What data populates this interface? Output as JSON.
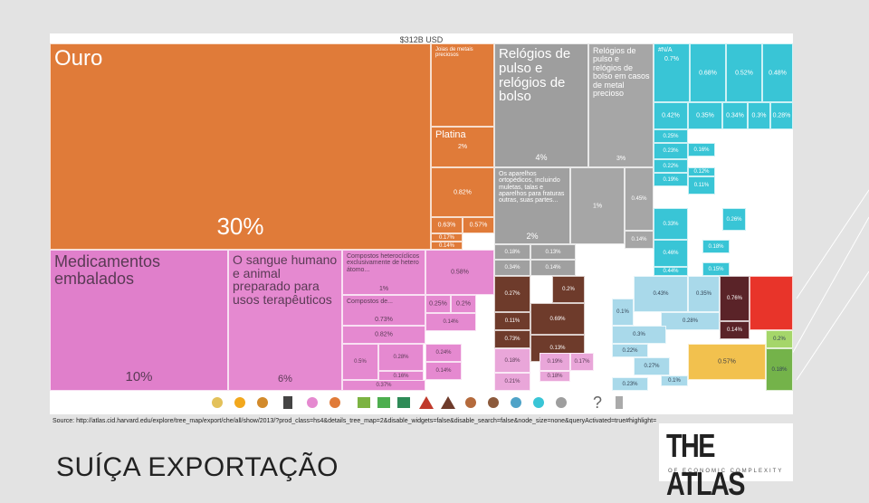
{
  "slide": {
    "title": "SUÍÇA EXPORTAÇÃO",
    "source": "Source: http://atlas.cid.harvard.edu/explore/tree_map/export/che/all/show/2013/?prod_class=hs4&details_tree_map=2&disable_widgets=false&disable_search=false&node_size=none&queryActivated=true#highlight=",
    "logo": {
      "title": "THE ATLAS",
      "subtitle": "OF ECONOMIC COMPLEXITY"
    }
  },
  "chart_data": {
    "type": "treemap",
    "title": "$312B USD",
    "tiles": [
      {
        "name": "Ouro",
        "value": 30,
        "value_label": "30%",
        "color": "#E07B39"
      },
      {
        "name": "Joias de metais preciosos",
        "color": "#E07B39"
      },
      {
        "name": "Platina",
        "value": 2,
        "value_label": "2%",
        "color": "#E07B39"
      },
      {
        "value": 0.82,
        "value_label": "0.82%",
        "color": "#E07B39"
      },
      {
        "value": 0.63,
        "value_label": "0.63%",
        "color": "#E07B39"
      },
      {
        "value": 0.57,
        "value_label": "0.57%",
        "color": "#E07B39"
      },
      {
        "value": 0.17,
        "value_label": "0.17%",
        "color": "#E07B39"
      },
      {
        "value": 0.14,
        "value_label": "0.14%",
        "color": "#E07B39"
      },
      {
        "name": "Relógios de pulso e relógios de bolso",
        "value": 4,
        "value_label": "4%",
        "color": "#9E9E9E"
      },
      {
        "name": "Relógios de pulso e relógios de bolso em casos de metal precioso",
        "value": 3,
        "value_label": "3%",
        "color": "#A6A6A6"
      },
      {
        "name": "Os aparelhos ortopédicos, incluindo muletas, talas e aparelhos para fraturas outras, suas partes...",
        "value": 2,
        "value_label": "2%",
        "color": "#A0A0A0"
      },
      {
        "value": 1,
        "value_label": "1%",
        "color": "#A6A6A6"
      },
      {
        "value": 0.45,
        "value_label": "0.45%",
        "color": "#A6A6A6"
      },
      {
        "value": 0.14,
        "value_label": "0.14%",
        "color": "#A6A6A6"
      },
      {
        "value": 0.18,
        "value_label": "0.18%",
        "color": "#A0A0A0"
      },
      {
        "value": 0.13,
        "value_label": "0.13%",
        "color": "#A0A0A0"
      },
      {
        "value": 0.34,
        "value_label": "0.34%",
        "color": "#A0A0A0"
      },
      {
        "value": 0.14,
        "value_label": "0.14%",
        "color": "#A0A0A0"
      },
      {
        "name": "#N/A",
        "value": 0.7,
        "value_label": "0.7%",
        "color": "#39C5D6"
      },
      {
        "value": 0.68,
        "value_label": "0.68%",
        "color": "#39C5D6"
      },
      {
        "value": 0.52,
        "value_label": "0.52%",
        "color": "#39C5D6"
      },
      {
        "value": 0.48,
        "value_label": "0.48%",
        "color": "#39C5D6"
      },
      {
        "value": 0.42,
        "value_label": "0.42%",
        "color": "#39C5D6"
      },
      {
        "value": 0.35,
        "value_label": "0.35%",
        "color": "#39C5D6"
      },
      {
        "value": 0.34,
        "value_label": "0.34%",
        "color": "#39C5D6"
      },
      {
        "value": 0.3,
        "value_label": "0.3%",
        "color": "#39C5D6"
      },
      {
        "value": 0.28,
        "value_label": "0.28%",
        "color": "#39C5D6"
      },
      {
        "value": 0.25,
        "value_label": "0.25%",
        "color": "#39C5D6"
      },
      {
        "value": 0.23,
        "value_label": "0.23%",
        "color": "#39C5D6"
      },
      {
        "value": 0.22,
        "value_label": "0.22%",
        "color": "#39C5D6"
      },
      {
        "value": 0.19,
        "value_label": "0.19%",
        "color": "#39C5D6"
      },
      {
        "value": 0.16,
        "value_label": "0.16%",
        "color": "#39C5D6"
      },
      {
        "value": 0.12,
        "value_label": "0.12%",
        "color": "#39C5D6"
      },
      {
        "value": 0.11,
        "value_label": "0.11%",
        "color": "#39C5D6"
      },
      {
        "value": 0.33,
        "value_label": "0.33%",
        "color": "#39C5D6"
      },
      {
        "value": 0.26,
        "value_label": "0.26%",
        "color": "#39C5D6"
      },
      {
        "value": 0.46,
        "value_label": "0.46%",
        "color": "#39C5D6"
      },
      {
        "value": 0.44,
        "value_label": "0.44%",
        "color": "#39C5D6"
      },
      {
        "value": 0.18,
        "value_label": "0.18%",
        "color": "#39C5D6"
      },
      {
        "value": 0.15,
        "value_label": "0.15%",
        "color": "#39C5D6"
      },
      {
        "name": "Medicamentos embalados",
        "value": 10,
        "value_label": "10%",
        "color": "#E07FCB"
      },
      {
        "name": "O sangue humano e animal preparado para usos terapêuticos",
        "value": 6,
        "value_label": "6%",
        "color": "#E589D0"
      },
      {
        "name": "Compostos heterocíclicos exclusivamente de hetero átomo...",
        "value": 1,
        "value_label": "1%",
        "color": "#E589D0"
      },
      {
        "name": "Compostos de...",
        "value": 0.73,
        "value_label": "0.73%",
        "color": "#E589D0"
      },
      {
        "value": 0.82,
        "value_label": "0.82%",
        "color": "#E589D0"
      },
      {
        "value": 0.5,
        "value_label": "0.5%",
        "color": "#E589D0"
      },
      {
        "value": 0.28,
        "value_label": "0.28%",
        "color": "#E589D0"
      },
      {
        "value": 0.16,
        "value_label": "0.16%",
        "color": "#E589D0"
      },
      {
        "value": 0.37,
        "value_label": "0.37%",
        "color": "#E589D0"
      },
      {
        "value": 0.58,
        "value_label": "0.58%",
        "color": "#E589D0"
      },
      {
        "value": 0.25,
        "value_label": "0.25%",
        "color": "#E589D0"
      },
      {
        "value": 0.2,
        "value_label": "0.2%",
        "color": "#E589D0"
      },
      {
        "value": 0.14,
        "value_label": "0.14%",
        "color": "#E589D0"
      },
      {
        "value": 0.24,
        "value_label": "0.24%",
        "color": "#E589D0"
      },
      {
        "value": 0.14,
        "value_label": "0.14%",
        "color": "#E589D0"
      },
      {
        "value": 0.27,
        "value_label": "0.27%",
        "color": "#6E3B2B"
      },
      {
        "value": 0.2,
        "value_label": "0.2%",
        "color": "#6E3B2B"
      },
      {
        "value": 0.11,
        "value_label": "0.11%",
        "color": "#6E3B2B"
      },
      {
        "value": 0.69,
        "value_label": "0.69%",
        "color": "#6E3B2B"
      },
      {
        "value": 0.73,
        "value_label": "0.73%",
        "color": "#6E3B2B"
      },
      {
        "value": 0.13,
        "value_label": "0.13%",
        "color": "#6E3B2B"
      },
      {
        "value": 0.18,
        "value_label": "0.18%",
        "color": "#E9A6D9"
      },
      {
        "value": 0.19,
        "value_label": "0.19%",
        "color": "#E9A6D9"
      },
      {
        "value": 0.17,
        "value_label": "0.17%",
        "color": "#E9A6D9"
      },
      {
        "value": 0.18,
        "value_label": "0.18%",
        "color": "#E9A6D9"
      },
      {
        "value": 0.21,
        "value_label": "0.21%",
        "color": "#E9A6D9"
      },
      {
        "value": 0.43,
        "value_label": "0.43%",
        "color": "#A9D9EA"
      },
      {
        "value": 0.35,
        "value_label": "0.35%",
        "color": "#A9D9EA"
      },
      {
        "value": 0.1,
        "value_label": "0.1%",
        "color": "#A9D9EA"
      },
      {
        "value": 0.28,
        "value_label": "0.28%",
        "color": "#A9D9EA"
      },
      {
        "value": 0.3,
        "value_label": "0.3%",
        "color": "#A9D9EA"
      },
      {
        "value": 0.22,
        "value_label": "0.22%",
        "color": "#A9D9EA"
      },
      {
        "value": 0.27,
        "value_label": "0.27%",
        "color": "#A9D9EA"
      },
      {
        "value": 0.1,
        "value_label": "0.1%",
        "color": "#A9D9EA"
      },
      {
        "value": 0.23,
        "value_label": "0.23%",
        "color": "#A9D9EA"
      },
      {
        "value": 0.76,
        "value_label": "0.76%",
        "color": "#5A2328"
      },
      {
        "value": 0.14,
        "value_label": "0.14%",
        "color": "#5A2328"
      },
      {
        "color": "#E8342A"
      },
      {
        "value": 0.57,
        "value_label": "0.57%",
        "color": "#F2C14E"
      },
      {
        "value": 0.2,
        "value_label": "0.2%",
        "color": "#A5D66A"
      },
      {
        "value": 0.18,
        "value_label": "0.18%",
        "color": "#74B34A"
      }
    ]
  }
}
